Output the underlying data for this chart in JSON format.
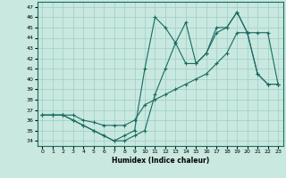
{
  "xlabel": "Humidex (Indice chaleur)",
  "xlim": [
    -0.5,
    23.5
  ],
  "ylim": [
    33.5,
    47.5
  ],
  "yticks": [
    34,
    35,
    36,
    37,
    38,
    39,
    40,
    41,
    42,
    43,
    44,
    45,
    46,
    47
  ],
  "xticks": [
    0,
    1,
    2,
    3,
    4,
    5,
    6,
    7,
    8,
    9,
    10,
    11,
    12,
    13,
    14,
    15,
    16,
    17,
    18,
    19,
    20,
    21,
    22,
    23
  ],
  "background_color": "#c8e8e0",
  "grid_color": "#9fcec4",
  "line_color": "#1a6b60",
  "line1_x": [
    0,
    1,
    2,
    3,
    4,
    5,
    6,
    7,
    8,
    9,
    10,
    11,
    12,
    13,
    14,
    15,
    16,
    17,
    18,
    19,
    20,
    21,
    22,
    23
  ],
  "line1_y": [
    36.5,
    36.5,
    36.5,
    36.0,
    35.5,
    35.0,
    34.5,
    34.0,
    34.0,
    34.5,
    35.0,
    38.5,
    41.0,
    43.5,
    45.5,
    41.5,
    42.5,
    44.5,
    45.0,
    46.5,
    44.5,
    40.5,
    39.5,
    39.5
  ],
  "line2_x": [
    0,
    1,
    2,
    3,
    4,
    5,
    6,
    7,
    8,
    9,
    10,
    11,
    12,
    13,
    14,
    15,
    16,
    17,
    18,
    19,
    20,
    21,
    22,
    23
  ],
  "line2_y": [
    36.5,
    36.5,
    36.5,
    36.0,
    35.5,
    35.0,
    34.5,
    34.0,
    34.5,
    35.0,
    41.0,
    46.0,
    45.0,
    43.5,
    41.5,
    41.5,
    42.5,
    45.0,
    45.0,
    46.5,
    44.5,
    40.5,
    39.5,
    39.5
  ],
  "line3_x": [
    0,
    1,
    2,
    3,
    4,
    5,
    6,
    7,
    8,
    9,
    10,
    11,
    12,
    13,
    14,
    15,
    16,
    17,
    18,
    19,
    20,
    21,
    22,
    23
  ],
  "line3_y": [
    36.5,
    36.5,
    36.5,
    36.5,
    36.0,
    35.8,
    35.5,
    35.5,
    35.5,
    36.0,
    37.5,
    38.0,
    38.5,
    39.0,
    39.5,
    40.0,
    40.5,
    41.5,
    42.5,
    44.5,
    44.5,
    44.5,
    44.5,
    39.5
  ]
}
